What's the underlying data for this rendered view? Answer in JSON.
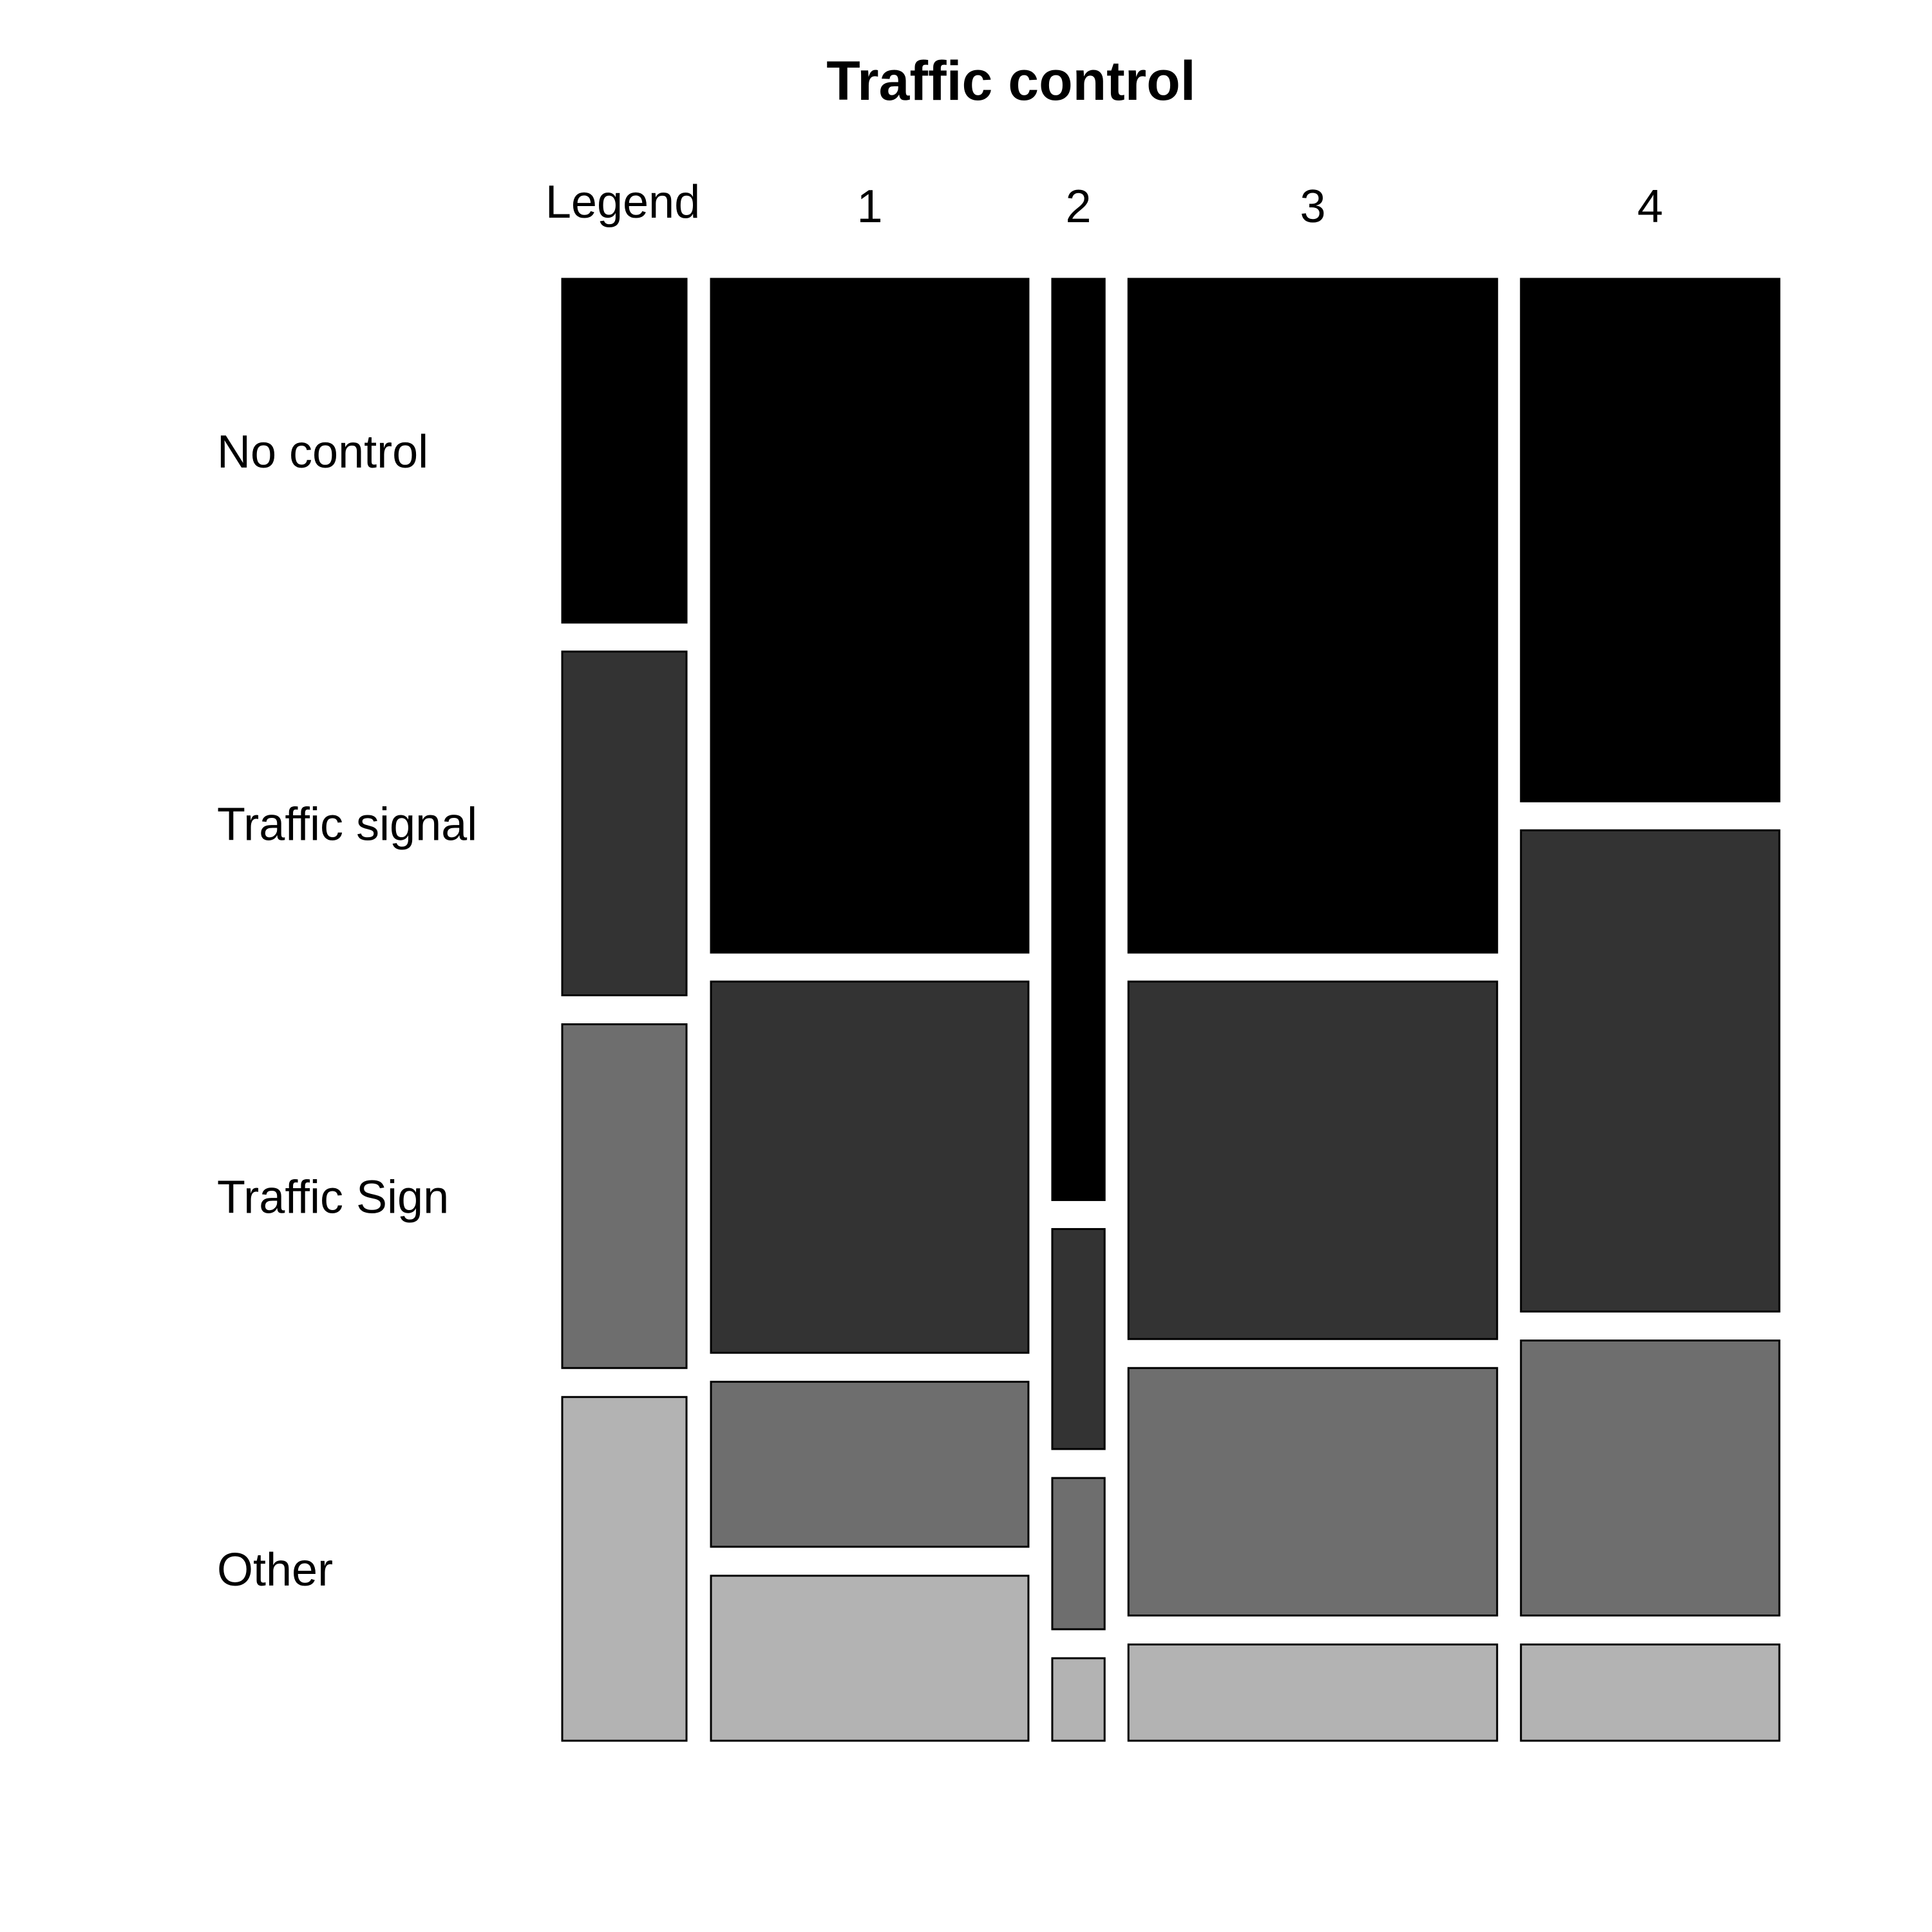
{
  "chart_data": {
    "type": "mosaic",
    "title": "Traffic control",
    "legend_label": "Legend",
    "columns": [
      "1",
      "2",
      "3",
      "4"
    ],
    "categories": [
      "No control",
      "Traffic signal",
      "Traffic Sign",
      "Other"
    ],
    "colors": [
      "#000000",
      "#333333",
      "#6e6e6e",
      "#b3b3b3"
    ],
    "column_shares": [
      0.285,
      0.047,
      0.331,
      0.232
    ],
    "proportions": [
      [
        0.49,
        0.27,
        0.12,
        0.12
      ],
      [
        0.67,
        0.16,
        0.11,
        0.06
      ],
      [
        0.49,
        0.26,
        0.18,
        0.07
      ],
      [
        0.38,
        0.35,
        0.2,
        0.07
      ]
    ],
    "legend_proportions": [
      0.25,
      0.25,
      0.25,
      0.25
    ]
  }
}
